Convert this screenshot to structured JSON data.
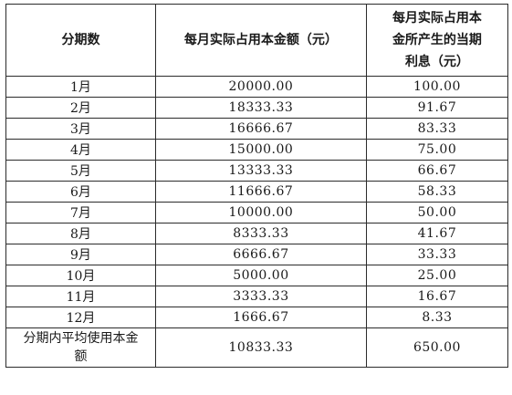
{
  "headers": {
    "period": "分期数",
    "principal": "每月实际占用本金额（元）",
    "interest_line1": "每月实际占用本",
    "interest_line2": "金所产生的当期",
    "interest_line3": "利息（元）"
  },
  "rows": [
    {
      "period": "1月",
      "principal": "20000.00",
      "interest": "100.00"
    },
    {
      "period": "2月",
      "principal": "18333.33",
      "interest": "91.67"
    },
    {
      "period": "3月",
      "principal": "16666.67",
      "interest": "83.33"
    },
    {
      "period": "4月",
      "principal": "15000.00",
      "interest": "75.00"
    },
    {
      "period": "5月",
      "principal": "13333.33",
      "interest": "66.67"
    },
    {
      "period": "6月",
      "principal": "11666.67",
      "interest": "58.33"
    },
    {
      "period": "7月",
      "principal": "10000.00",
      "interest": "50.00"
    },
    {
      "period": "8月",
      "principal": "8333.33",
      "interest": "41.67"
    },
    {
      "period": "9月",
      "principal": "6666.67",
      "interest": "33.33"
    },
    {
      "period": "10月",
      "principal": "5000.00",
      "interest": "25.00"
    },
    {
      "period": "11月",
      "principal": "3333.33",
      "interest": "16.67"
    },
    {
      "period": "12月",
      "principal": "1666.67",
      "interest": "8.33"
    }
  ],
  "summary": {
    "label_line1": "分期内平均使用本金",
    "label_line2": "额",
    "principal": "10833.33",
    "interest": "650.00"
  }
}
